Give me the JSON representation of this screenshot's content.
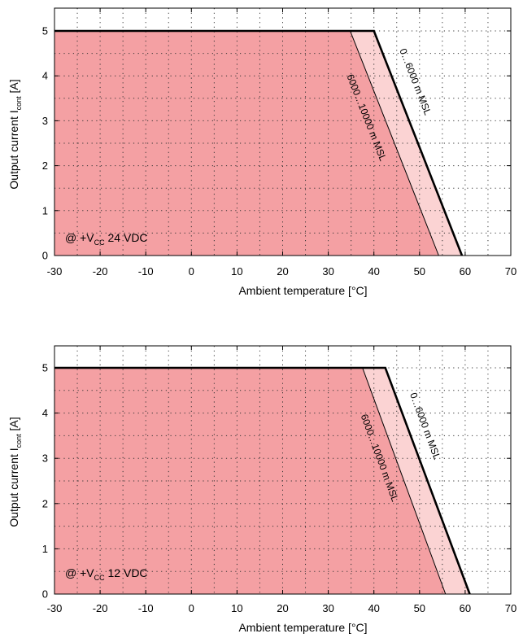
{
  "chart_data": [
    {
      "type": "area",
      "condition_prefix": "@ +V",
      "condition_sub": "CC",
      "condition_suffix": " 24 VDC",
      "xlabel": "Ambient temperature [°C]",
      "ylabel_main": "Output current I",
      "ylabel_sub": "cont",
      "ylabel_unit": " [A]",
      "xlim": [
        -30,
        70
      ],
      "ylim": [
        0,
        5
      ],
      "x_ticks": [
        -30,
        -20,
        -10,
        0,
        10,
        20,
        30,
        40,
        50,
        60,
        70
      ],
      "y_ticks": [
        0,
        1,
        2,
        3,
        4,
        5
      ],
      "grid": true,
      "colors": {
        "inner_fill": "#f4a0a3",
        "outer_fill": "#fbd3d3",
        "outer_line": "#000000",
        "inner_line": "#000000"
      },
      "series": [
        {
          "name": "0…6000 m MSL",
          "x": [
            -30,
            40,
            59.3
          ],
          "y": [
            5,
            5,
            0
          ]
        },
        {
          "name": "6000…10000 m MSL",
          "x": [
            -30,
            34.8,
            54.2
          ],
          "y": [
            5,
            5,
            0
          ]
        }
      ]
    },
    {
      "type": "area",
      "condition_prefix": "@ +V",
      "condition_sub": "CC",
      "condition_suffix": " 12 VDC",
      "xlabel": "Ambient temperature [°C]",
      "ylabel_main": "Output current I",
      "ylabel_sub": "cont",
      "ylabel_unit": " [A]",
      "xlim": [
        -30,
        70
      ],
      "ylim": [
        0,
        5
      ],
      "x_ticks": [
        -30,
        -20,
        -10,
        0,
        10,
        20,
        30,
        40,
        50,
        60,
        70
      ],
      "y_ticks": [
        0,
        1,
        2,
        3,
        4,
        5
      ],
      "grid": true,
      "colors": {
        "inner_fill": "#f4a0a3",
        "outer_fill": "#fbd3d3",
        "outer_line": "#000000",
        "inner_line": "#000000"
      },
      "series": [
        {
          "name": "0…6000 m MSL",
          "x": [
            -30,
            42.5,
            61
          ],
          "y": [
            5,
            5,
            0
          ]
        },
        {
          "name": "6000…10000 m MSL",
          "x": [
            -30,
            37.5,
            55.7
          ],
          "y": [
            5,
            5,
            0
          ]
        }
      ]
    }
  ]
}
